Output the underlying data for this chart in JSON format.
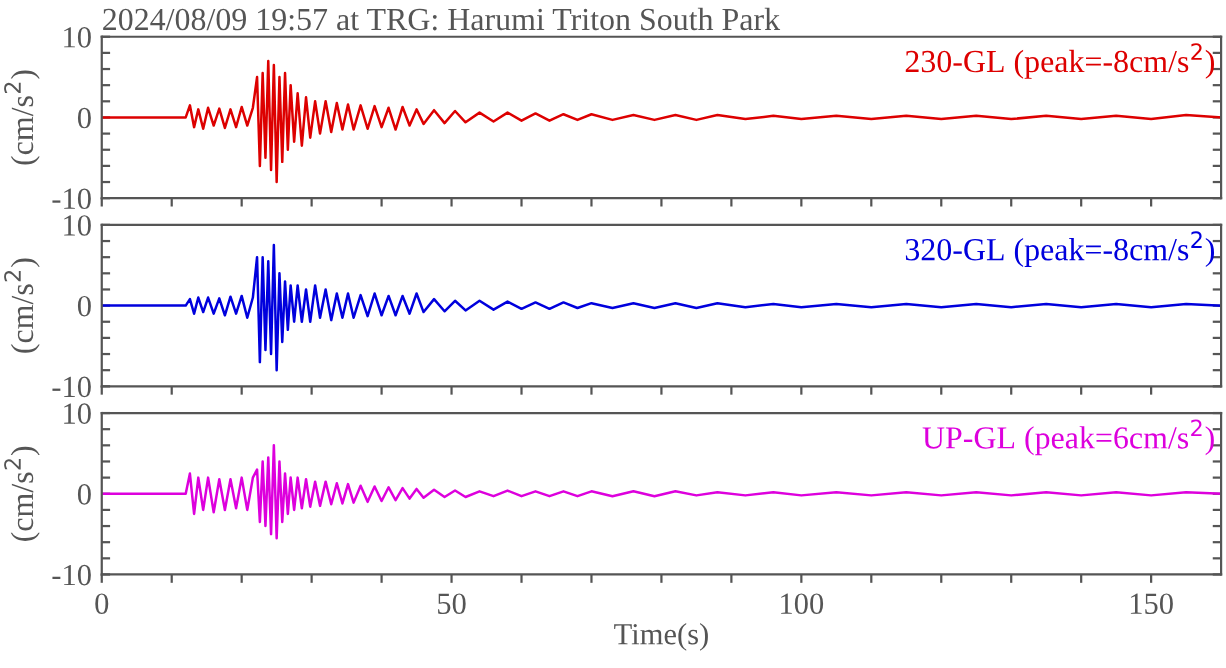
{
  "chart_data": [
    {
      "type": "line",
      "title": "2024/08/09 19:57 at TRG: Harumi Triton South Park",
      "ylabel": "(cm/s$^{2}$)",
      "tick_labels": "y",
      "xlim": [
        0,
        160
      ],
      "ylim": [
        -10,
        10
      ],
      "xticks": [
        {
          "value": 0,
          "label": null
        },
        {
          "value": 10,
          "label": null
        },
        {
          "value": 20,
          "label": null
        },
        {
          "value": 30,
          "label": null
        },
        {
          "value": 40,
          "label": null
        },
        {
          "value": 50,
          "label": null
        },
        {
          "value": 60,
          "label": null
        },
        {
          "value": 70,
          "label": null
        },
        {
          "value": 80,
          "label": null
        },
        {
          "value": 90,
          "label": null
        },
        {
          "value": 100,
          "label": null
        },
        {
          "value": 110,
          "label": null
        },
        {
          "value": 120,
          "label": null
        },
        {
          "value": 130,
          "label": null
        },
        {
          "value": 140,
          "label": null
        },
        {
          "value": 150,
          "label": null
        }
      ],
      "yticks": [
        -10,
        {
          "value": -8,
          "label": null
        },
        {
          "value": -6,
          "label": null
        },
        {
          "value": -4,
          "label": null
        },
        {
          "value": -2,
          "label": null
        },
        0,
        {
          "value": 2,
          "label": null
        },
        {
          "value": 4,
          "label": null
        },
        {
          "value": 6,
          "label": null
        },
        {
          "value": 8,
          "label": null
        },
        10
      ],
      "x": [
        0,
        12,
        12.6,
        13.2,
        13.8,
        14.5,
        15.2,
        16,
        16.8,
        17.6,
        18.4,
        19.2,
        20,
        20.8,
        21.6,
        22.2,
        22.6,
        23,
        23.4,
        23.8,
        24.2,
        24.6,
        25,
        25.4,
        25.8,
        26.2,
        26.6,
        27,
        27.5,
        28,
        28.6,
        29.2,
        29.8,
        30.5,
        31.2,
        32,
        32.8,
        33.6,
        34.4,
        35.2,
        36,
        37,
        38,
        39,
        40,
        41,
        42,
        43,
        44,
        45,
        46,
        47.5,
        49,
        50.5,
        52,
        54,
        56,
        58,
        60,
        62,
        64,
        66,
        68,
        70,
        73,
        76,
        79,
        82,
        85,
        88,
        92,
        96,
        100,
        105,
        110,
        115,
        120,
        125,
        130,
        135,
        140,
        145,
        150,
        155,
        160
      ],
      "series": [
        {
          "name": "230-GL (peak=-8cm/s$^{2}$)",
          "color": "#dd0000",
          "values": [
            0,
            0,
            1.5,
            -1.2,
            1,
            -1.4,
            1.2,
            -1,
            1.1,
            -1.3,
            1,
            -1.2,
            1.3,
            -1,
            1.2,
            5,
            -6,
            5.5,
            -5,
            7,
            -6.5,
            6.5,
            -8,
            5,
            -5.5,
            5.5,
            -4,
            4,
            -3,
            3,
            -3.5,
            2.5,
            -2.5,
            2,
            -2,
            2,
            -1.8,
            1.8,
            -1.5,
            1.6,
            -1.5,
            1.5,
            -1.4,
            1.4,
            -1.2,
            1.2,
            -1.5,
            1.3,
            -1,
            1,
            -0.8,
            0.9,
            -0.7,
            0.8,
            -0.6,
            0.6,
            -0.5,
            0.6,
            -0.4,
            0.5,
            -0.4,
            0.4,
            -0.3,
            0.4,
            -0.3,
            0.3,
            -0.3,
            0.3,
            -0.3,
            0.3,
            -0.2,
            0.2,
            -0.2,
            0.2,
            -0.2,
            0.2,
            -0.2,
            0.2,
            -0.2,
            0.2,
            -0.2,
            0.2,
            -0.2,
            0.3,
            0
          ]
        }
      ]
    },
    {
      "type": "line",
      "ylabel": "(cm/s$^{2}$)",
      "tick_labels": "y",
      "xlim": [
        0,
        160
      ],
      "ylim": [
        -10,
        10
      ],
      "xticks": [
        {
          "value": 0,
          "label": null
        },
        {
          "value": 10,
          "label": null
        },
        {
          "value": 20,
          "label": null
        },
        {
          "value": 30,
          "label": null
        },
        {
          "value": 40,
          "label": null
        },
        {
          "value": 50,
          "label": null
        },
        {
          "value": 60,
          "label": null
        },
        {
          "value": 70,
          "label": null
        },
        {
          "value": 80,
          "label": null
        },
        {
          "value": 90,
          "label": null
        },
        {
          "value": 100,
          "label": null
        },
        {
          "value": 110,
          "label": null
        },
        {
          "value": 120,
          "label": null
        },
        {
          "value": 130,
          "label": null
        },
        {
          "value": 140,
          "label": null
        },
        {
          "value": 150,
          "label": null
        }
      ],
      "yticks": [
        -10,
        {
          "value": -8,
          "label": null
        },
        {
          "value": -6,
          "label": null
        },
        {
          "value": -4,
          "label": null
        },
        {
          "value": -2,
          "label": null
        },
        0,
        {
          "value": 2,
          "label": null
        },
        {
          "value": 4,
          "label": null
        },
        {
          "value": 6,
          "label": null
        },
        {
          "value": 8,
          "label": null
        },
        10
      ],
      "x": [
        0,
        12,
        12.6,
        13.2,
        13.8,
        14.5,
        15.2,
        16,
        16.8,
        17.6,
        18.4,
        19.2,
        20,
        20.8,
        21.6,
        22.2,
        22.6,
        23,
        23.4,
        23.8,
        24.2,
        24.6,
        25,
        25.4,
        25.8,
        26.2,
        26.6,
        27,
        27.5,
        28,
        28.6,
        29.2,
        29.8,
        30.5,
        31.2,
        32,
        32.8,
        33.6,
        34.4,
        35.2,
        36,
        37,
        38,
        39,
        40,
        41,
        42,
        43,
        44,
        45,
        46,
        47.5,
        49,
        50.5,
        52,
        54,
        56,
        58,
        60,
        62,
        64,
        66,
        68,
        70,
        73,
        76,
        79,
        82,
        85,
        88,
        92,
        96,
        100,
        105,
        110,
        115,
        120,
        125,
        130,
        135,
        140,
        145,
        150,
        155,
        160
      ],
      "series": [
        {
          "name": "320-GL (peak=-8cm/s$^{2}$)",
          "color": "#0000dd",
          "values": [
            0,
            0,
            0.8,
            -1,
            1,
            -0.8,
            1,
            -1,
            0.9,
            -1.2,
            1.1,
            -1,
            1.2,
            -1.5,
            1,
            6,
            -7,
            6,
            -5.5,
            5.5,
            -6,
            7.5,
            -8,
            4,
            -4.5,
            3,
            -3,
            2.5,
            -2,
            2.5,
            -2,
            2,
            -2,
            2.5,
            -1.5,
            2,
            -1.8,
            1.5,
            -1.5,
            1.5,
            -1.5,
            1.3,
            -1.3,
            1.5,
            -1.2,
            1.2,
            -1.2,
            1.2,
            -1,
            1.5,
            -0.8,
            0.8,
            -0.7,
            0.6,
            -0.6,
            0.6,
            -0.5,
            0.5,
            -0.4,
            0.4,
            -0.4,
            0.4,
            -0.3,
            0.3,
            -0.3,
            0.3,
            -0.3,
            0.3,
            -0.3,
            0.3,
            -0.2,
            0.2,
            -0.2,
            0.2,
            -0.2,
            0.2,
            -0.2,
            0.2,
            -0.2,
            0.2,
            -0.2,
            0.2,
            -0.2,
            0.2,
            0
          ]
        }
      ]
    },
    {
      "type": "line",
      "xlabel": "Time(s)",
      "ylabel": "(cm/s$^{2}$)",
      "xlim": [
        0,
        160
      ],
      "ylim": [
        -10,
        10
      ],
      "xticks": [
        0,
        {
          "value": 10,
          "label": null
        },
        {
          "value": 20,
          "label": null
        },
        {
          "value": 30,
          "label": null
        },
        {
          "value": 40,
          "label": null
        },
        50,
        {
          "value": 60,
          "label": null
        },
        {
          "value": 70,
          "label": null
        },
        {
          "value": 80,
          "label": null
        },
        {
          "value": 90,
          "label": null
        },
        100,
        {
          "value": 110,
          "label": null
        },
        {
          "value": 120,
          "label": null
        },
        {
          "value": 130,
          "label": null
        },
        {
          "value": 140,
          "label": null
        },
        150
      ],
      "yticks": [
        -10,
        {
          "value": -8,
          "label": null
        },
        {
          "value": -6,
          "label": null
        },
        {
          "value": -4,
          "label": null
        },
        {
          "value": -2,
          "label": null
        },
        0,
        {
          "value": 2,
          "label": null
        },
        {
          "value": 4,
          "label": null
        },
        {
          "value": 6,
          "label": null
        },
        {
          "value": 8,
          "label": null
        },
        10
      ],
      "x": [
        0,
        12,
        12.6,
        13.2,
        13.8,
        14.5,
        15.2,
        16,
        16.8,
        17.6,
        18.4,
        19.2,
        20,
        20.8,
        21.6,
        22.2,
        22.6,
        23,
        23.4,
        23.8,
        24.2,
        24.6,
        25,
        25.4,
        25.8,
        26.2,
        26.6,
        27,
        27.5,
        28,
        28.6,
        29.2,
        29.8,
        30.5,
        31.2,
        32,
        32.8,
        33.6,
        34.4,
        35.2,
        36,
        37,
        38,
        39,
        40,
        41,
        42,
        43,
        44,
        45,
        46,
        47.5,
        49,
        50.5,
        52,
        54,
        56,
        58,
        60,
        62,
        64,
        66,
        68,
        70,
        73,
        76,
        79,
        82,
        85,
        88,
        92,
        96,
        100,
        105,
        110,
        115,
        120,
        125,
        130,
        135,
        140,
        145,
        150,
        155,
        160
      ],
      "series": [
        {
          "name": "UP-GL (peak=6cm/s$^{2}$)",
          "color": "#dd00dd",
          "values": [
            0,
            0,
            2.5,
            -2.5,
            2,
            -2,
            2,
            -2.3,
            1.8,
            -2,
            1.8,
            -1.8,
            2,
            -2,
            2,
            3,
            -3.5,
            4,
            -4,
            4.5,
            -5,
            6,
            -5.5,
            4,
            -3.5,
            2.5,
            -2.5,
            2,
            -2,
            2,
            -1.8,
            1.8,
            -1.6,
            1.5,
            -1.5,
            1.5,
            -1.3,
            1.3,
            -1.2,
            1.2,
            -1.1,
            1,
            -1,
            0.9,
            -0.9,
            0.8,
            -0.8,
            0.7,
            -0.6,
            0.6,
            -0.5,
            0.5,
            -0.4,
            0.4,
            -0.4,
            0.3,
            -0.3,
            0.4,
            -0.3,
            0.3,
            -0.3,
            0.3,
            -0.3,
            0.3,
            -0.3,
            0.3,
            -0.3,
            0.3,
            -0.2,
            0.2,
            -0.2,
            0.2,
            -0.2,
            0.2,
            -0.2,
            0.2,
            -0.2,
            0.2,
            -0.2,
            0.2,
            -0.2,
            0.2,
            -0.2,
            0.2,
            0
          ]
        }
      ]
    }
  ]
}
